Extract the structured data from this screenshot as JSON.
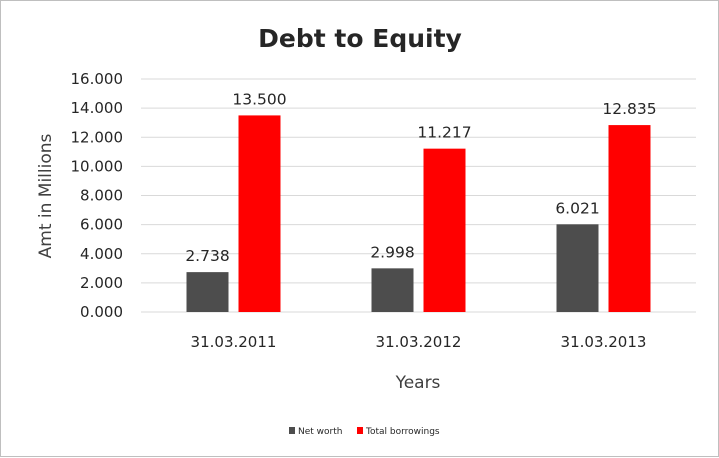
{
  "chart_data": {
    "type": "bar",
    "title": "Debt to Equity",
    "xlabel": "Years",
    "ylabel": "Amt in Millions",
    "categories": [
      "31.03.2011",
      "31.03.2012",
      "31.03.2013"
    ],
    "series": [
      {
        "name": "Net worth",
        "color": "#4d4d4d",
        "values": [
          2.738,
          2.998,
          6.021
        ],
        "labels": [
          "2.738",
          "2.998",
          "6.021"
        ]
      },
      {
        "name": "Total borrowings",
        "color": "#ff0000",
        "values": [
          13.5,
          11.217,
          12.835
        ],
        "labels": [
          "13.500",
          "11.217",
          "12.835"
        ]
      }
    ],
    "ylim": [
      0,
      16
    ],
    "yticks": [
      "0.000",
      "2.000",
      "4.000",
      "6.000",
      "8.000",
      "10.000",
      "12.000",
      "14.000",
      "16.000"
    ],
    "grid": true,
    "legend_position": "bottom"
  }
}
